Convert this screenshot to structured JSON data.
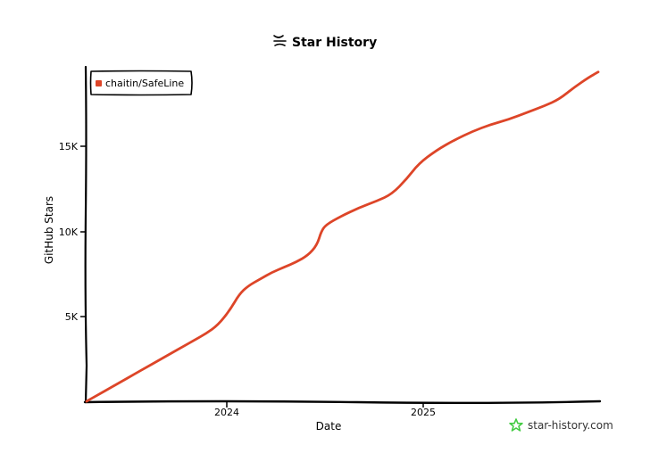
{
  "chart_data": {
    "type": "line",
    "title": "Star History",
    "xlabel": "Date",
    "ylabel": "GitHub Stars",
    "x_tick_labels": [
      "2024",
      "2025"
    ],
    "y_tick_labels": [
      "5K",
      "10K",
      "15K"
    ],
    "ylim": [
      0,
      19700
    ],
    "grid": false,
    "legend_placement": "top-left",
    "series": [
      {
        "name": "chaitin/SafeLine",
        "color": "#dd4528",
        "points": [
          [
            "2023-05-01",
            0
          ],
          [
            "2023-05-21",
            400
          ],
          [
            "2023-06-10",
            800
          ],
          [
            "2023-06-30",
            1200
          ],
          [
            "2023-07-20",
            1600
          ],
          [
            "2023-08-09",
            2000
          ],
          [
            "2023-08-29",
            2400
          ],
          [
            "2023-09-18",
            2800
          ],
          [
            "2023-10-08",
            3200
          ],
          [
            "2023-10-28",
            3600
          ],
          [
            "2023-11-17",
            4000
          ],
          [
            "2023-12-07",
            4500
          ],
          [
            "2023-12-27",
            5400
          ],
          [
            "2024-01-11",
            6300
          ],
          [
            "2024-01-26",
            6800
          ],
          [
            "2024-02-15",
            7200
          ],
          [
            "2024-03-06",
            7600
          ],
          [
            "2024-03-26",
            7900
          ],
          [
            "2024-04-15",
            8200
          ],
          [
            "2024-05-05",
            8600
          ],
          [
            "2024-05-20",
            9200
          ],
          [
            "2024-05-27",
            10000
          ],
          [
            "2024-06-04",
            10400
          ],
          [
            "2024-06-29",
            10900
          ],
          [
            "2024-07-29",
            11400
          ],
          [
            "2024-08-28",
            11800
          ],
          [
            "2024-09-22",
            12200
          ],
          [
            "2024-10-17",
            13100
          ],
          [
            "2024-11-06",
            14000
          ],
          [
            "2024-12-06",
            14800
          ],
          [
            "2025-01-05",
            15400
          ],
          [
            "2025-02-04",
            15900
          ],
          [
            "2025-03-06",
            16300
          ],
          [
            "2025-04-05",
            16600
          ],
          [
            "2025-05-05",
            17000
          ],
          [
            "2025-06-04",
            17400
          ],
          [
            "2025-06-29",
            17800
          ],
          [
            "2025-07-24",
            18500
          ],
          [
            "2025-08-18",
            19100
          ],
          [
            "2025-09-02",
            19400
          ]
        ]
      }
    ]
  },
  "watermark": {
    "text": "star-history.com",
    "icon": "star-icon",
    "color": "#44cc44"
  },
  "title_icon": "star-history-logo-icon"
}
